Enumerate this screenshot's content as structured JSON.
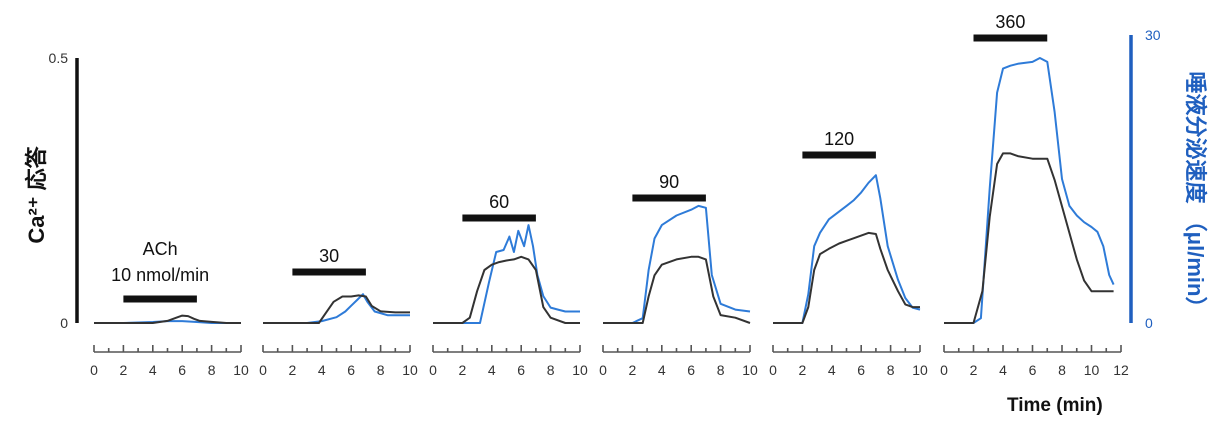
{
  "chart_data": [
    {
      "type": "line",
      "label": "ACh",
      "label_sub": "10 nmol/min",
      "stim_start": 2,
      "stim_end": 7,
      "xlim": [
        0,
        10
      ],
      "xticks": [
        0,
        2,
        4,
        6,
        8,
        10
      ],
      "series": [
        {
          "color": "#333333",
          "axis": "left",
          "x": [
            0,
            2,
            4,
            5,
            5.6,
            6,
            6.4,
            6.8,
            7.2,
            8,
            9,
            10
          ],
          "y": [
            0,
            0,
            0,
            0.004,
            0.01,
            0.014,
            0.013,
            0.008,
            0.004,
            0.002,
            0,
            0
          ]
        },
        {
          "color": "#2e7bd8",
          "axis": "right",
          "x": [
            0,
            2,
            4,
            5,
            6,
            7,
            8,
            10
          ],
          "y": [
            0,
            0,
            0.1,
            0.2,
            0.2,
            0.1,
            0,
            0
          ]
        }
      ]
    },
    {
      "type": "line",
      "label": "30",
      "stim_start": 2,
      "stim_end": 7,
      "xlim": [
        0,
        10
      ],
      "xticks": [
        0,
        2,
        4,
        6,
        8,
        10
      ],
      "series": [
        {
          "color": "#333333",
          "axis": "left",
          "x": [
            0,
            2,
            3,
            3.8,
            4.3,
            4.8,
            5.4,
            6,
            6.5,
            7,
            7.4,
            8,
            9,
            10
          ],
          "y": [
            0,
            0,
            0,
            0,
            0.02,
            0.04,
            0.05,
            0.05,
            0.052,
            0.05,
            0.032,
            0.022,
            0.02,
            0.02
          ]
        },
        {
          "color": "#2e7bd8",
          "axis": "right",
          "x": [
            0,
            3,
            4,
            5,
            5.6,
            6,
            6.4,
            6.8,
            7.1,
            7.6,
            8.5,
            10
          ],
          "y": [
            0,
            0,
            0.2,
            0.6,
            1.2,
            1.8,
            2.4,
            3.0,
            2.2,
            1.2,
            0.8,
            0.8
          ]
        }
      ]
    },
    {
      "type": "line",
      "label": "60",
      "stim_start": 2,
      "stim_end": 7,
      "xlim": [
        0,
        10
      ],
      "xticks": [
        0,
        2,
        4,
        6,
        8,
        10
      ],
      "series": [
        {
          "color": "#333333",
          "axis": "left",
          "x": [
            0,
            2,
            2.5,
            3,
            3.5,
            4,
            4.5,
            5,
            5.5,
            6,
            6.5,
            7,
            7.5,
            8,
            9,
            10
          ],
          "y": [
            0,
            0,
            0.01,
            0.06,
            0.1,
            0.11,
            0.115,
            0.118,
            0.12,
            0.125,
            0.12,
            0.1,
            0.03,
            0.01,
            0,
            0
          ]
        },
        {
          "color": "#2e7bd8",
          "axis": "right",
          "x": [
            0,
            2,
            3.2,
            3.8,
            4.3,
            4.8,
            5.2,
            5.5,
            5.8,
            6.2,
            6.5,
            6.8,
            7.1,
            7.5,
            8,
            8.5,
            9,
            10
          ],
          "y": [
            0,
            0,
            0,
            4.2,
            7.4,
            7.6,
            9.0,
            7.4,
            9.6,
            8.0,
            10.2,
            8.0,
            5.0,
            2.8,
            1.6,
            1.4,
            1.2,
            1.2
          ]
        }
      ]
    },
    {
      "type": "line",
      "label": "90",
      "stim_start": 2,
      "stim_end": 7,
      "xlim": [
        0,
        10
      ],
      "xticks": [
        0,
        2,
        4,
        6,
        8,
        10
      ],
      "series": [
        {
          "color": "#333333",
          "axis": "left",
          "x": [
            0,
            2,
            2.7,
            3.1,
            3.5,
            4,
            5,
            6,
            6.5,
            7,
            7.5,
            8,
            9,
            10
          ],
          "y": [
            0,
            0,
            0,
            0.05,
            0.09,
            0.11,
            0.12,
            0.125,
            0.125,
            0.12,
            0.05,
            0.015,
            0.01,
            0
          ]
        },
        {
          "color": "#2e7bd8",
          "axis": "right",
          "x": [
            0,
            2,
            2.7,
            3.1,
            3.5,
            4,
            5,
            6,
            6.5,
            7,
            7.4,
            8,
            9,
            10
          ],
          "y": [
            0,
            0,
            0.5,
            5.5,
            8.8,
            10.2,
            11.2,
            11.8,
            12.2,
            12.0,
            5.0,
            2.0,
            1.4,
            1.2
          ]
        }
      ]
    },
    {
      "type": "line",
      "label": "120",
      "stim_start": 2,
      "stim_end": 7,
      "xlim": [
        0,
        10
      ],
      "xticks": [
        0,
        2,
        4,
        6,
        8,
        10
      ],
      "series": [
        {
          "color": "#333333",
          "axis": "left",
          "x": [
            0,
            2,
            2.4,
            2.8,
            3.2,
            3.8,
            4.5,
            5,
            5.5,
            6,
            6.5,
            7,
            7.3,
            7.8,
            8.5,
            9,
            9.5,
            10
          ],
          "y": [
            0,
            0,
            0.03,
            0.1,
            0.13,
            0.14,
            0.15,
            0.155,
            0.16,
            0.165,
            0.17,
            0.168,
            0.14,
            0.1,
            0.06,
            0.035,
            0.03,
            0.03
          ]
        },
        {
          "color": "#2e7bd8",
          "axis": "right",
          "x": [
            0,
            2,
            2.4,
            2.8,
            3.2,
            3.8,
            4.5,
            5,
            5.5,
            6,
            6.5,
            7,
            7.3,
            7.8,
            8.5,
            9,
            9.5,
            10
          ],
          "y": [
            0,
            0,
            3.0,
            8.0,
            9.4,
            10.8,
            11.6,
            12.2,
            12.8,
            13.6,
            14.6,
            15.4,
            13.0,
            8.0,
            4.5,
            2.6,
            1.6,
            1.4
          ]
        }
      ]
    },
    {
      "type": "line",
      "label": "360",
      "stim_start": 2,
      "stim_end": 7,
      "xlim": [
        0,
        12
      ],
      "xticks": [
        0,
        2,
        4,
        6,
        8,
        10,
        12
      ],
      "series": [
        {
          "color": "#333333",
          "axis": "left",
          "x": [
            0,
            2,
            2.6,
            3.1,
            3.6,
            4,
            4.5,
            5,
            6,
            6.5,
            7,
            7.5,
            8,
            8.5,
            9,
            9.5,
            10,
            10.5,
            11,
            11.5
          ],
          "y": [
            0,
            0,
            0.06,
            0.2,
            0.3,
            0.32,
            0.32,
            0.315,
            0.31,
            0.31,
            0.31,
            0.27,
            0.22,
            0.17,
            0.12,
            0.08,
            0.06,
            0.06,
            0.06,
            0.06
          ]
        },
        {
          "color": "#2e7bd8",
          "axis": "right",
          "x": [
            0,
            2,
            2.5,
            3.1,
            3.6,
            4,
            4.5,
            5,
            6,
            6.5,
            7,
            7.5,
            8,
            8.5,
            9,
            9.5,
            10,
            10.4,
            10.8,
            11.2,
            11.5
          ],
          "y": [
            0,
            0,
            0.5,
            14,
            24,
            26.5,
            26.8,
            27,
            27.2,
            27.6,
            27.2,
            22,
            15,
            12.2,
            11.2,
            10.5,
            10,
            9.5,
            8,
            5,
            4
          ]
        }
      ]
    }
  ],
  "axes": {
    "left_label": "Ca²⁺ 応答",
    "left_ticks": [
      "0.5",
      "0"
    ],
    "left_range": [
      0,
      0.5
    ],
    "right_label": "唾液分泌速度 （μl/min）",
    "right_ticks": [
      "30",
      "0"
    ],
    "right_range": [
      0,
      30
    ],
    "x_label": "Time (min)",
    "left_color": "#111111",
    "right_color": "#1f5fbf"
  }
}
